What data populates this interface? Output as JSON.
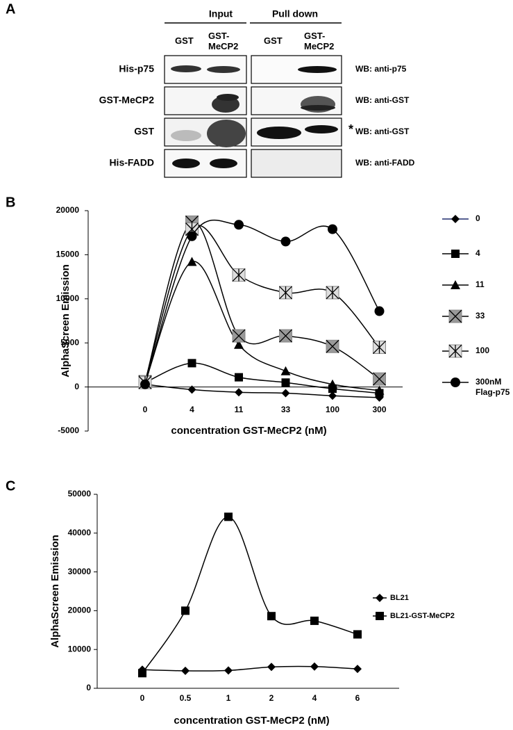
{
  "panel_a": {
    "label": "A",
    "headers": [
      "Input",
      "Pull down"
    ],
    "columns": [
      "GST",
      "GST-MeCP2",
      "GST",
      "GST-MeCP2"
    ],
    "rows": [
      {
        "label": "His-p75",
        "wb": "WB:  anti-p75"
      },
      {
        "label": "GST-MeCP2",
        "wb": "WB:  anti-GST"
      },
      {
        "label": "GST",
        "wb": "WB:  anti-GST"
      },
      {
        "label": "His-FADD",
        "wb": "WB: anti-FADD"
      }
    ],
    "marker": "*"
  },
  "chart_data": [
    {
      "type": "line",
      "panel_label": "B",
      "x_label": "concentration GST-MeCP2 (nM)",
      "y_label": "AlphaScreen Emission",
      "categories": [
        "0",
        "4",
        "11",
        "33",
        "100",
        "300"
      ],
      "ylim": [
        -5000,
        20000
      ],
      "yticks": [
        -5000,
        0,
        5000,
        10000,
        15000,
        20000
      ],
      "smooth": true,
      "series": [
        {
          "name": "0",
          "color": "#000",
          "legend_color": "#1f2a6e",
          "marker": "diamond",
          "values": [
            300,
            -300,
            -600,
            -700,
            -1000,
            -1200
          ]
        },
        {
          "name": "4",
          "color": "#000",
          "marker": "square",
          "values": [
            500,
            2700,
            1100,
            500,
            -200,
            -700
          ]
        },
        {
          "name": "11",
          "color": "#000",
          "marker": "triangle",
          "values": [
            500,
            14200,
            4800,
            1800,
            300,
            -400
          ]
        },
        {
          "name": "33",
          "color": "#000",
          "marker": "xbox",
          "values": [
            600,
            18700,
            5800,
            5800,
            4600,
            900
          ]
        },
        {
          "name": "100",
          "color": "#000",
          "marker": "starbox",
          "values": [
            500,
            17900,
            12700,
            10700,
            10700,
            4500
          ]
        },
        {
          "name": "300nM Flag-p75",
          "color": "#000",
          "marker": "circle",
          "values": [
            300,
            17100,
            18400,
            16500,
            17900,
            8600
          ]
        }
      ]
    },
    {
      "type": "line",
      "panel_label": "C",
      "x_label": "concentration GST-MeCP2 (nM)",
      "y_label": "AlphaScreen Emission",
      "categories": [
        "0",
        "0.5",
        "1",
        "2",
        "4",
        "6"
      ],
      "ylim": [
        0,
        50000
      ],
      "yticks": [
        0,
        10000,
        20000,
        30000,
        40000,
        50000
      ],
      "smooth": true,
      "series": [
        {
          "name": "BL21",
          "color": "#000",
          "marker": "diamond",
          "values": [
            4800,
            4500,
            4600,
            5500,
            5600,
            5000
          ]
        },
        {
          "name": "BL21-GST-MeCP2",
          "color": "#000",
          "marker": "square",
          "values": [
            3900,
            20000,
            44200,
            18600,
            17400,
            13900
          ]
        }
      ]
    }
  ]
}
